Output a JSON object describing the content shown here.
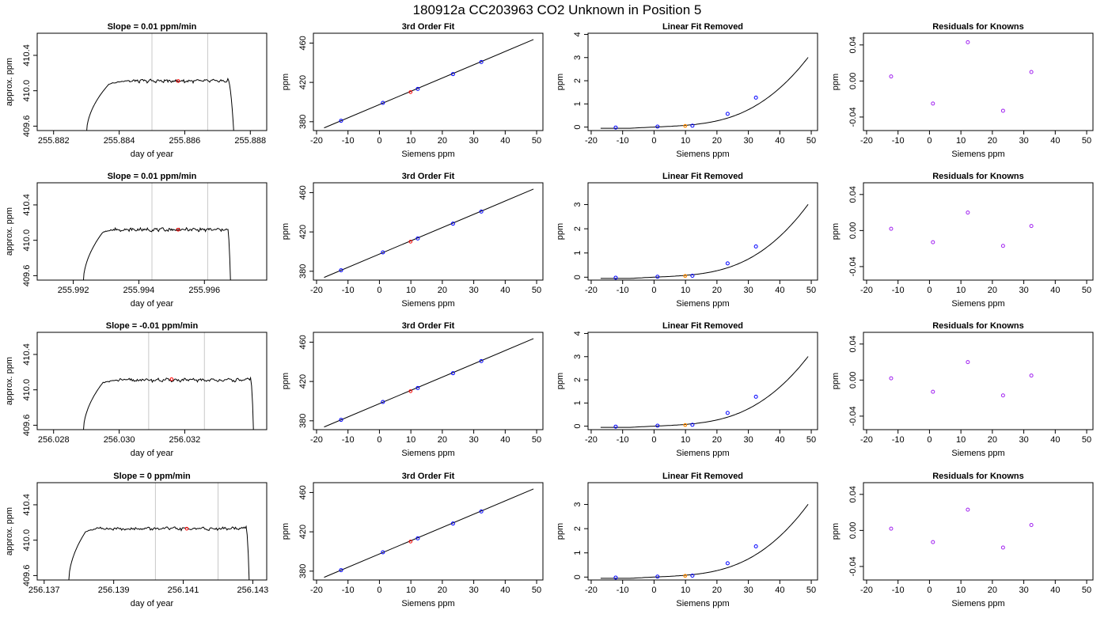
{
  "page_title": "180912a      CC203963    CO2 Unknown in Position  5",
  "colors": {
    "axis": "#000000",
    "line": "#000000",
    "window_line": "#c8c8c8",
    "unknown_point": "#ff0000",
    "unknown_point_fit": "#ff8c00",
    "known_point": "#0000ff",
    "residual_point": "#a020f0"
  },
  "chart_data": [
    {
      "id": "r0c0",
      "type": "line",
      "title": "Slope =  0.01  ppm/min",
      "xlabel": "day of year",
      "ylabel": "approx. ppm",
      "xlim": [
        255.8815,
        255.8885
      ],
      "ylim": [
        409.55,
        410.65
      ],
      "xticks": [
        "255.882",
        "255.884",
        "255.886",
        "255.888"
      ],
      "yticks": [
        "409.6",
        "410.0",
        "410.4"
      ],
      "trace": {
        "x_start": 255.883,
        "rise_end": 255.8837,
        "plateau_start": 255.8842,
        "plateau_end": 255.8873,
        "fall_end": 255.8875,
        "base": 409.5,
        "level": 410.11
      },
      "window_lines": [
        255.885,
        255.8867
      ],
      "unknown_point": {
        "x": 255.8858,
        "y": 410.11
      }
    },
    {
      "id": "r0c1",
      "type": "line",
      "title": "3rd Order Fit",
      "xlabel": "Siemens ppm",
      "ylabel": "ppm",
      "xlim": [
        -21,
        52
      ],
      "ylim": [
        371,
        470
      ],
      "xticks": [
        "-20",
        "-10",
        "0",
        "10",
        "20",
        "30",
        "40",
        "50"
      ],
      "yticks": [
        "380",
        "420",
        "460"
      ],
      "fit_line": {
        "x": [
          -17.6,
          49
        ],
        "y": [
          373.7,
          463.6
        ]
      },
      "known_points": {
        "x": [
          -12.2,
          1.1,
          12.2,
          23.4,
          32.4
        ],
        "y": [
          381.0,
          399.2,
          413.4,
          428.4,
          440.7
        ]
      },
      "unknown_point": {
        "x": 9.9,
        "y": 410.1
      }
    },
    {
      "id": "r0c2",
      "type": "line",
      "title": "Linear Fit Removed",
      "xlabel": "Siemens ppm",
      "ylabel": "ppm",
      "xlim": [
        -21,
        52
      ],
      "ylim": [
        -0.15,
        4.05
      ],
      "xticks": [
        "-20",
        "-10",
        "0",
        "10",
        "20",
        "30",
        "40",
        "50"
      ],
      "yticks": [
        "0",
        "1",
        "2",
        "3",
        "4"
      ],
      "curve_cubic": [
        2.38e-05,
        0.0,
        0.01,
        0.02
      ],
      "curve_xrange": [
        -17,
        49
      ],
      "known_points": {
        "x": [
          -12.2,
          1.1,
          12.2,
          23.4,
          32.4
        ],
        "y": [
          -0.02,
          0.02,
          0.06,
          0.57,
          1.27
        ]
      },
      "unknown_point": {
        "x": 9.9,
        "y": 0.05
      }
    },
    {
      "id": "r0c3",
      "type": "scatter",
      "title": "Residuals for Knowns",
      "xlabel": "Siemens ppm",
      "ylabel": "ppm",
      "xlim": [
        -21,
        52
      ],
      "ylim": [
        -0.055,
        0.053
      ],
      "xticks": [
        "-20",
        "-10",
        "0",
        "10",
        "20",
        "30",
        "40",
        "50"
      ],
      "yticks": [
        "-0.04",
        "0.00",
        "0.04"
      ],
      "points": {
        "x": [
          -12.2,
          1.1,
          12.2,
          23.4,
          32.4
        ],
        "y": [
          0.005,
          -0.025,
          0.043,
          -0.033,
          0.01
        ]
      }
    },
    {
      "id": "r1c0",
      "type": "line",
      "title": "Slope =  0.01  ppm/min",
      "xlabel": "day of year",
      "ylabel": "approx. ppm",
      "xlim": [
        255.9909,
        255.9979
      ],
      "ylim": [
        409.55,
        410.65
      ],
      "xticks": [
        "255.992",
        "255.994",
        "255.996"
      ],
      "yticks": [
        "409.6",
        "410.0",
        "410.4"
      ],
      "trace": {
        "x_start": 255.9923,
        "rise_end": 255.9929,
        "plateau_start": 255.9932,
        "plateau_end": 255.9967,
        "fall_end": 255.9968,
        "base": 409.5,
        "level": 410.12
      },
      "window_lines": [
        255.9944,
        255.9961
      ],
      "unknown_point": {
        "x": 255.9952,
        "y": 410.12
      }
    },
    {
      "id": "r1c1",
      "type": "line",
      "title": "3rd Order Fit",
      "xlabel": "Siemens ppm",
      "ylabel": "ppm",
      "xlim": [
        -21,
        52
      ],
      "ylim": [
        371,
        470
      ],
      "xticks": [
        "-20",
        "-10",
        "0",
        "10",
        "20",
        "30",
        "40",
        "50"
      ],
      "yticks": [
        "380",
        "420",
        "460"
      ],
      "fit_line": {
        "x": [
          -17.6,
          49
        ],
        "y": [
          373.7,
          463.6
        ]
      },
      "known_points": {
        "x": [
          -12.2,
          1.1,
          12.2,
          23.4,
          32.4
        ],
        "y": [
          381.0,
          399.2,
          413.4,
          428.4,
          440.7
        ]
      },
      "unknown_point": {
        "x": 9.9,
        "y": 410.1
      }
    },
    {
      "id": "r1c2",
      "type": "line",
      "title": "Linear Fit Removed",
      "xlabel": "Siemens ppm",
      "ylabel": "ppm",
      "xlim": [
        -21,
        52
      ],
      "ylim": [
        -0.12,
        3.9
      ],
      "xticks": [
        "-20",
        "-10",
        "0",
        "10",
        "20",
        "30",
        "40",
        "50"
      ],
      "yticks": [
        "0",
        "1",
        "2",
        "3"
      ],
      "curve_cubic": [
        2.38e-05,
        0.0,
        0.01,
        0.02
      ],
      "curve_xrange": [
        -17,
        49
      ],
      "known_points": {
        "x": [
          -12.2,
          1.1,
          12.2,
          23.4,
          32.4
        ],
        "y": [
          -0.02,
          0.02,
          0.06,
          0.57,
          1.27
        ]
      },
      "unknown_point": {
        "x": 9.9,
        "y": 0.05
      }
    },
    {
      "id": "r1c3",
      "type": "scatter",
      "title": "Residuals for Knowns",
      "xlabel": "Siemens ppm",
      "ylabel": "ppm",
      "xlim": [
        -21,
        52
      ],
      "ylim": [
        -0.055,
        0.053
      ],
      "xticks": [
        "-20",
        "-10",
        "0",
        "10",
        "20",
        "30",
        "40",
        "50"
      ],
      "yticks": [
        "-0.04",
        "0.00",
        "0.04"
      ],
      "points": {
        "x": [
          -12.2,
          1.1,
          12.2,
          23.4,
          32.4
        ],
        "y": [
          0.002,
          -0.013,
          0.02,
          -0.017,
          0.005
        ]
      }
    },
    {
      "id": "r2c0",
      "type": "line",
      "title": "Slope =  -0.01  ppm/min",
      "xlabel": "day of year",
      "ylabel": "approx. ppm",
      "xlim": [
        256.0275,
        256.0345
      ],
      "ylim": [
        409.55,
        410.65
      ],
      "xticks": [
        "256.028",
        "256.030",
        "256.032"
      ],
      "yticks": [
        "409.6",
        "410.0",
        "410.4"
      ],
      "trace": {
        "x_start": 256.0289,
        "rise_end": 256.0295,
        "plateau_start": 256.0299,
        "plateau_end": 256.034,
        "fall_end": 256.0341,
        "base": 409.5,
        "level": 410.11
      },
      "window_lines": [
        256.0309,
        256.0326
      ],
      "unknown_point": {
        "x": 256.0316,
        "y": 410.12
      }
    },
    {
      "id": "r2c1",
      "type": "line",
      "title": "3rd Order Fit",
      "xlabel": "Siemens ppm",
      "ylabel": "ppm",
      "xlim": [
        -21,
        52
      ],
      "ylim": [
        371,
        470
      ],
      "xticks": [
        "-20",
        "-10",
        "0",
        "10",
        "20",
        "30",
        "40",
        "50"
      ],
      "yticks": [
        "380",
        "420",
        "460"
      ],
      "fit_line": {
        "x": [
          -17.6,
          49
        ],
        "y": [
          373.7,
          463.6
        ]
      },
      "known_points": {
        "x": [
          -12.2,
          1.1,
          12.2,
          23.4,
          32.4
        ],
        "y": [
          381.0,
          399.2,
          413.4,
          428.4,
          440.7
        ]
      },
      "unknown_point": {
        "x": 9.9,
        "y": 410.1
      }
    },
    {
      "id": "r2c2",
      "type": "line",
      "title": "Linear Fit Removed",
      "xlabel": "Siemens ppm",
      "ylabel": "ppm",
      "xlim": [
        -21,
        52
      ],
      "ylim": [
        -0.15,
        4.05
      ],
      "xticks": [
        "-20",
        "-10",
        "0",
        "10",
        "20",
        "30",
        "40",
        "50"
      ],
      "yticks": [
        "0",
        "1",
        "2",
        "3",
        "4"
      ],
      "curve_cubic": [
        2.38e-05,
        0.0,
        0.01,
        0.02
      ],
      "curve_xrange": [
        -17,
        49
      ],
      "known_points": {
        "x": [
          -12.2,
          1.1,
          12.2,
          23.4,
          32.4
        ],
        "y": [
          -0.02,
          0.02,
          0.06,
          0.57,
          1.27
        ]
      },
      "unknown_point": {
        "x": 9.9,
        "y": 0.05
      }
    },
    {
      "id": "r2c3",
      "type": "scatter",
      "title": "Residuals for Knowns",
      "xlabel": "Siemens ppm",
      "ylabel": "ppm",
      "xlim": [
        -21,
        52
      ],
      "ylim": [
        -0.055,
        0.053
      ],
      "xticks": [
        "-20",
        "-10",
        "0",
        "10",
        "20",
        "30",
        "40",
        "50"
      ],
      "yticks": [
        "-0.04",
        "0.00",
        "0.04"
      ],
      "points": {
        "x": [
          -12.2,
          1.1,
          12.2,
          23.4,
          32.4
        ],
        "y": [
          0.002,
          -0.013,
          0.02,
          -0.017,
          0.005
        ]
      }
    },
    {
      "id": "r3c0",
      "type": "line",
      "title": "Slope =  0  ppm/min",
      "xlabel": "day of year",
      "ylabel": "approx. ppm",
      "xlim": [
        256.1368,
        256.1434
      ],
      "ylim": [
        409.55,
        410.65
      ],
      "xticks": [
        "256.137",
        "256.139",
        "256.141",
        "256.143"
      ],
      "yticks": [
        "409.6",
        "410.0",
        "410.4"
      ],
      "trace": {
        "x_start": 256.1377,
        "rise_end": 256.1382,
        "plateau_start": 256.1385,
        "plateau_end": 256.1428,
        "fall_end": 256.1429,
        "base": 409.5,
        "level": 410.13
      },
      "window_lines": [
        256.1402,
        256.142
      ],
      "unknown_point": {
        "x": 256.1411,
        "y": 410.13
      }
    },
    {
      "id": "r3c1",
      "type": "line",
      "title": "3rd Order Fit",
      "xlabel": "Siemens ppm",
      "ylabel": "ppm",
      "xlim": [
        -21,
        52
      ],
      "ylim": [
        371,
        470
      ],
      "xticks": [
        "-20",
        "-10",
        "0",
        "10",
        "20",
        "30",
        "40",
        "50"
      ],
      "yticks": [
        "380",
        "420",
        "460"
      ],
      "fit_line": {
        "x": [
          -17.6,
          49
        ],
        "y": [
          373.7,
          463.6
        ]
      },
      "known_points": {
        "x": [
          -12.2,
          1.1,
          12.2,
          23.4,
          32.4
        ],
        "y": [
          381.0,
          399.2,
          413.4,
          428.4,
          440.7
        ]
      },
      "unknown_point": {
        "x": 9.9,
        "y": 410.1
      }
    },
    {
      "id": "r3c2",
      "type": "line",
      "title": "Linear Fit Removed",
      "xlabel": "Siemens ppm",
      "ylabel": "ppm",
      "xlim": [
        -21,
        52
      ],
      "ylim": [
        -0.12,
        3.9
      ],
      "xticks": [
        "-20",
        "-10",
        "0",
        "10",
        "20",
        "30",
        "40",
        "50"
      ],
      "yticks": [
        "0",
        "1",
        "2",
        "3"
      ],
      "curve_cubic": [
        2.38e-05,
        0.0,
        0.01,
        0.02
      ],
      "curve_xrange": [
        -17,
        49
      ],
      "known_points": {
        "x": [
          -12.2,
          1.1,
          12.2,
          23.4,
          32.4
        ],
        "y": [
          -0.02,
          0.02,
          0.06,
          0.57,
          1.27
        ]
      },
      "unknown_point": {
        "x": 9.9,
        "y": 0.05
      }
    },
    {
      "id": "r3c3",
      "type": "scatter",
      "title": "Residuals for Knowns",
      "xlabel": "Siemens ppm",
      "ylabel": "ppm",
      "xlim": [
        -21,
        52
      ],
      "ylim": [
        -0.055,
        0.053
      ],
      "xticks": [
        "-20",
        "-10",
        "0",
        "10",
        "20",
        "30",
        "40",
        "50"
      ],
      "yticks": [
        "-0.04",
        "0.00",
        "0.04"
      ],
      "points": {
        "x": [
          -12.2,
          1.1,
          12.2,
          23.4,
          32.4
        ],
        "y": [
          0.002,
          -0.013,
          0.023,
          -0.019,
          0.006
        ]
      }
    }
  ]
}
